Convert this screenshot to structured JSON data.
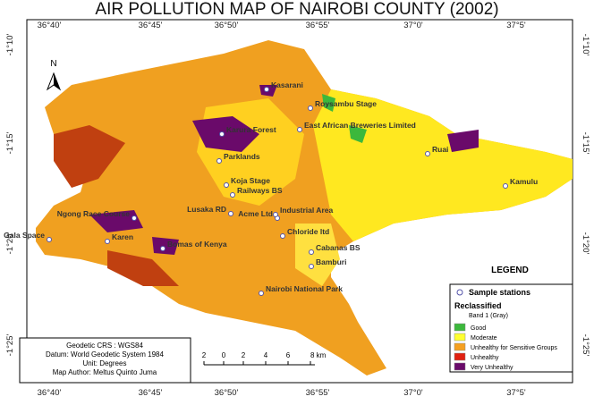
{
  "title": "AIR POLLUTION MAP OF NAIROBI COUNTY (2002)",
  "longitudes": [
    "36°40'",
    "36°45'",
    "36°50'",
    "36°55'",
    "37°0'",
    "37°5'"
  ],
  "latitudes": [
    "-1°10'",
    "-1°15'",
    "-1°20'",
    "-1°25'"
  ],
  "north": "N",
  "stations": [
    "Kasarani",
    "Roysambu Stage",
    "Karura Forest",
    "East African Breweries Limited",
    "Ruai",
    "Parklands",
    "Kamulu",
    "Koja Stage",
    "Railways BS",
    "Lusaka RD",
    "Acme Ltd",
    "Industrial Area",
    "Chloride ltd",
    "Cabanas BS",
    "Ngong Race Course",
    "Gala Space",
    "Karen",
    "Bomas of Kenya",
    "Bamburi",
    "Nairobi National Park"
  ],
  "legend": {
    "title": "LEGEND",
    "stations_label": "Sample stations",
    "reclassified": "Reclassified",
    "band": "Band 1 (Gray)",
    "classes": [
      {
        "name": "Good",
        "color": "#3cb83c"
      },
      {
        "name": "Moderate",
        "color": "#ffff30"
      },
      {
        "name": "Unhealthy for Sensitive Groups",
        "color": "#f5a020"
      },
      {
        "name": "Unhealthy",
        "color": "#e02010"
      },
      {
        "name": "Very Unhealthy",
        "color": "#6a0a6a"
      }
    ]
  },
  "info": [
    "Geodetic CRS : WGS84",
    "Datum: World Geodetic System 1984",
    "Unit: Degrees",
    "Map Author: Meltus Quinto Juma"
  ],
  "scale": [
    "2",
    "0",
    "2",
    "4",
    "6",
    "8 km"
  ]
}
